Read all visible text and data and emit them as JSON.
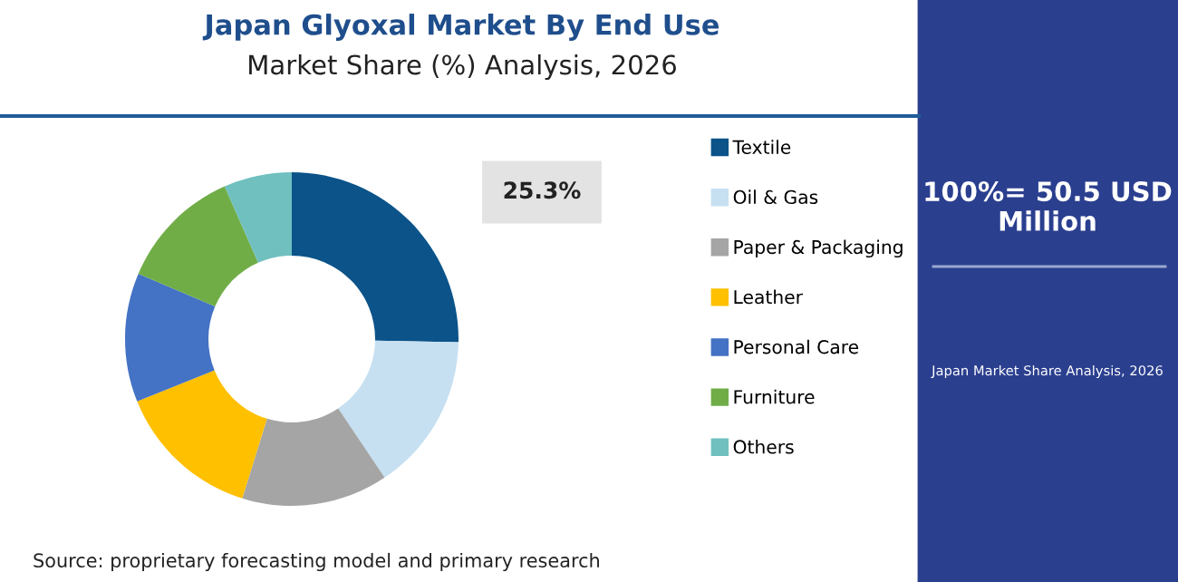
{
  "chart_data": {
    "type": "donut",
    "title": "Japan Glyoxal Market By End Use",
    "subtitle": "Market Share (%) Analysis, 2026",
    "categories": [
      "Textile",
      "Oil & Gas",
      "Paper & Packaging",
      "Leather",
      "Personal Care",
      "Furniture",
      "Others"
    ],
    "values": [
      25.3,
      15.3,
      14.2,
      14.1,
      12.5,
      12.0,
      6.6
    ],
    "colors": [
      "#0b5389",
      "#c6e0f2",
      "#a5a5a5",
      "#ffc000",
      "#4472c4",
      "#70ad47",
      "#6fc0bf"
    ],
    "value_labels": [
      "25.3%",
      null,
      null,
      null,
      null,
      null,
      null
    ],
    "legend": "right",
    "annotations": [
      "100%= 50.5 USD Million",
      "Japan Market Share Analysis, 2026",
      "Source: proprietary forecasting model and primary research"
    ]
  }
}
